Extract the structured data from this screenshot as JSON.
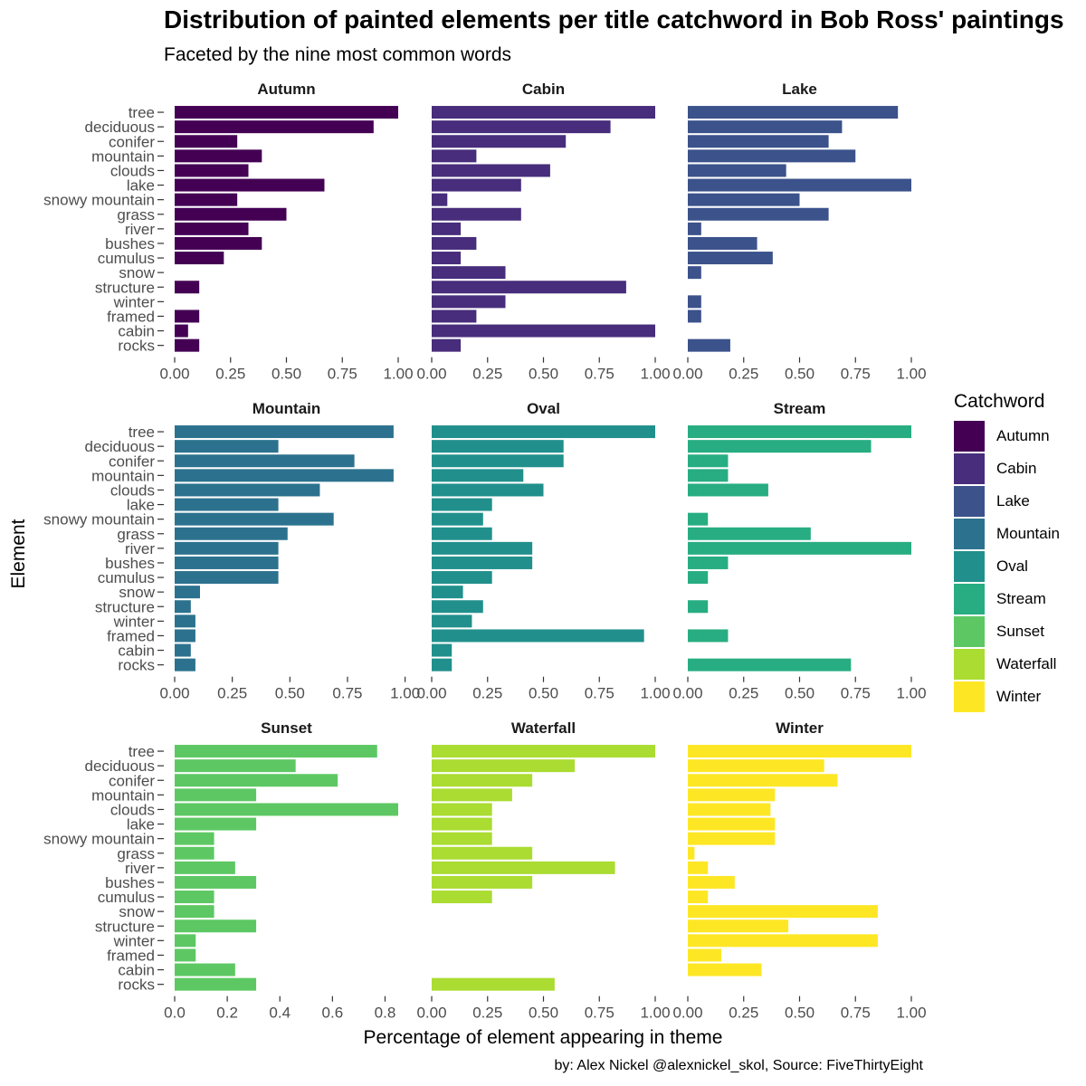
{
  "header": {
    "title": "Distribution of painted elements per title catchword in Bob Ross' paintings",
    "subtitle": "Faceted by the nine most common words"
  },
  "footer": {
    "caption": "by: Alex Nickel @alexnickel_skol, Source: FiveThirtyEight"
  },
  "legend": {
    "title": "Catchword",
    "items": [
      {
        "label": "Autumn",
        "color": "#440154"
      },
      {
        "label": "Cabin",
        "color": "#472D7B"
      },
      {
        "label": "Lake",
        "color": "#3B528B"
      },
      {
        "label": "Mountain",
        "color": "#2C728E"
      },
      {
        "label": "Oval",
        "color": "#21908C"
      },
      {
        "label": "Stream",
        "color": "#27AD81"
      },
      {
        "label": "Sunset",
        "color": "#5DC863"
      },
      {
        "label": "Waterfall",
        "color": "#AADC32"
      },
      {
        "label": "Winter",
        "color": "#FDE725"
      }
    ]
  },
  "chart_data": {
    "type": "bar",
    "orientation": "horizontal",
    "xlabel": "Percentage of element appearing in theme",
    "ylabel": "Element",
    "categories": [
      "tree",
      "deciduous",
      "conifer",
      "mountain",
      "clouds",
      "lake",
      "snowy mountain",
      "grass",
      "river",
      "bushes",
      "cumulus",
      "snow",
      "structure",
      "winter",
      "framed",
      "cabin",
      "rocks"
    ],
    "facets": [
      {
        "name": "Autumn",
        "color": "#440154",
        "xlim": [
          0,
          1
        ],
        "ticks": [
          "0.00",
          "0.25",
          "0.50",
          "0.75",
          "1.00"
        ],
        "values": [
          1.0,
          0.89,
          0.28,
          0.39,
          0.33,
          0.67,
          0.28,
          0.5,
          0.33,
          0.39,
          0.22,
          0,
          0.11,
          0,
          0.11,
          0.06,
          0.11
        ]
      },
      {
        "name": "Cabin",
        "color": "#472D7B",
        "xlim": [
          0,
          1
        ],
        "ticks": [
          "0.00",
          "0.25",
          "0.50",
          "0.75",
          "1.00"
        ],
        "values": [
          1.0,
          0.8,
          0.6,
          0.2,
          0.53,
          0.4,
          0.07,
          0.4,
          0.13,
          0.2,
          0.13,
          0.33,
          0.87,
          0.33,
          0.2,
          1.0,
          0.13
        ]
      },
      {
        "name": "Lake",
        "color": "#3B528B",
        "xlim": [
          0,
          1
        ],
        "ticks": [
          "0.00",
          "0.25",
          "0.50",
          "0.75",
          "1.00"
        ],
        "values": [
          0.94,
          0.69,
          0.63,
          0.75,
          0.44,
          1.0,
          0.5,
          0.63,
          0.06,
          0.31,
          0.38,
          0.06,
          0,
          0.06,
          0.06,
          0,
          0.19
        ]
      },
      {
        "name": "Mountain",
        "color": "#2C728E",
        "xlim": [
          0,
          0.97
        ],
        "ticks": [
          "0.00",
          "0.25",
          "0.50",
          "0.75",
          "1.00"
        ],
        "values": [
          0.95,
          0.45,
          0.78,
          0.95,
          0.63,
          0.45,
          0.69,
          0.49,
          0.45,
          0.45,
          0.45,
          0.11,
          0.07,
          0.09,
          0.09,
          0.07,
          0.09
        ]
      },
      {
        "name": "Oval",
        "color": "#21908C",
        "xlim": [
          0,
          1
        ],
        "ticks": [
          "0.00",
          "0.25",
          "0.50",
          "0.75",
          "1.00"
        ],
        "values": [
          1.0,
          0.59,
          0.59,
          0.41,
          0.5,
          0.27,
          0.23,
          0.27,
          0.45,
          0.45,
          0.27,
          0.14,
          0.23,
          0.18,
          0.95,
          0.09,
          0.09
        ]
      },
      {
        "name": "Stream",
        "color": "#27AD81",
        "xlim": [
          0,
          1
        ],
        "ticks": [
          "0.00",
          "0.25",
          "0.50",
          "0.75",
          "1.00"
        ],
        "values": [
          1.0,
          0.82,
          0.18,
          0.18,
          0.36,
          0,
          0.09,
          0.55,
          1.0,
          0.18,
          0.09,
          0,
          0.09,
          0,
          0.18,
          0,
          0.73
        ]
      },
      {
        "name": "Sunset",
        "color": "#5DC863",
        "xlim": [
          0,
          0.85
        ],
        "ticks": [
          "0.0",
          "0.2",
          "0.4",
          "0.6",
          "0.8"
        ],
        "values": [
          0.77,
          0.46,
          0.62,
          0.31,
          0.85,
          0.31,
          0.15,
          0.15,
          0.23,
          0.31,
          0.15,
          0.15,
          0.31,
          0.08,
          0.08,
          0.23,
          0.31
        ]
      },
      {
        "name": "Waterfall",
        "color": "#AADC32",
        "xlim": [
          0,
          1
        ],
        "ticks": [
          "0.00",
          "0.25",
          "0.50",
          "0.75",
          "1.00"
        ],
        "values": [
          1.0,
          0.64,
          0.45,
          0.36,
          0.27,
          0.27,
          0.27,
          0.45,
          0.82,
          0.45,
          0.27,
          0,
          0,
          0,
          0,
          0,
          0.55
        ]
      },
      {
        "name": "Winter",
        "color": "#FDE725",
        "xlim": [
          0,
          1
        ],
        "ticks": [
          "0.00",
          "0.25",
          "0.50",
          "0.75",
          "1.00"
        ],
        "values": [
          1.0,
          0.61,
          0.67,
          0.39,
          0.37,
          0.39,
          0.39,
          0.03,
          0.09,
          0.21,
          0.09,
          0.85,
          0.45,
          0.85,
          0.15,
          0.33,
          0
        ]
      }
    ]
  }
}
